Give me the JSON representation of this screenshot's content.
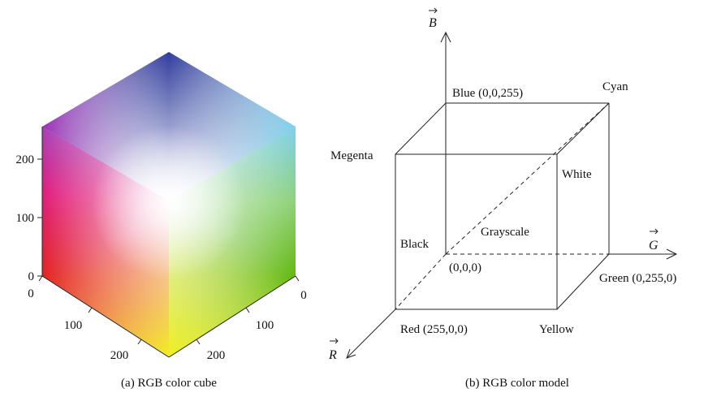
{
  "panel_a": {
    "caption": "(a) RGB color cube",
    "vertical_ticks": [
      "0",
      "100",
      "200"
    ],
    "left_ticks": [
      "0",
      "100",
      "200"
    ],
    "right_ticks": [
      "0",
      "100",
      "200"
    ],
    "colors": {
      "blue": "#2f3c9c",
      "magenta": "#9b2fb5",
      "cyan": "#7fd0ea",
      "white": "#ffffff",
      "red": "#e3221e",
      "green": "#63b810",
      "yellow": "#f2ef0c",
      "edge_shade": "#d8d0d8"
    }
  },
  "panel_b": {
    "caption": "(b) RGB color model",
    "axis_b": "B",
    "axis_g": "G",
    "axis_r": "R",
    "labels": {
      "blue": "Blue (0,0,255)",
      "cyan": "Cyan",
      "megenta": "Megenta",
      "white": "White",
      "black": "Black",
      "grayscale": "Grayscale",
      "origin": "(0,0,0)",
      "green": "Green (0,255,0)",
      "red": "Red (255,0,0)",
      "yellow": "Yellow"
    }
  }
}
